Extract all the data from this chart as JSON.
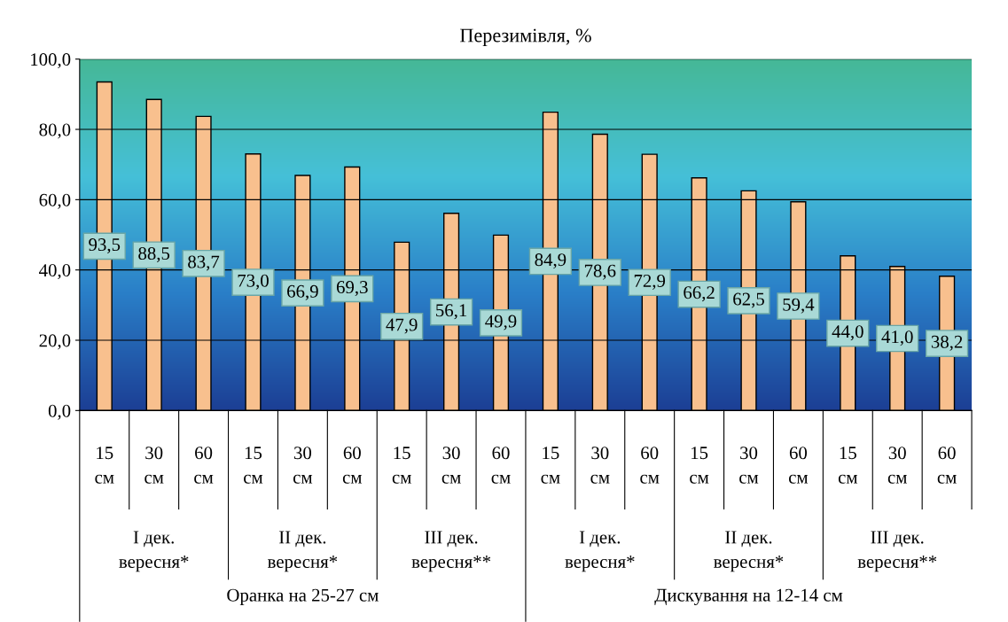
{
  "chart_data": {
    "type": "bar",
    "title": "Перезимівля, %",
    "categories": [
      "15\nсм",
      "30\nсм",
      "60\nсм",
      "15\nсм",
      "30\nсм",
      "60\nсм",
      "15\nсм",
      "30\nсм",
      "60\nсм",
      "15\nсм",
      "30\nсм",
      "60\nсм",
      "15\nсм",
      "30\nсм",
      "60\nсм",
      "15\nсм",
      "30\nсм",
      "60\nсм"
    ],
    "values": [
      93.5,
      88.5,
      83.7,
      73.0,
      66.9,
      69.3,
      47.9,
      56.1,
      49.9,
      84.9,
      78.6,
      72.9,
      66.2,
      62.5,
      59.4,
      44.0,
      41.0,
      38.2
    ],
    "value_labels": [
      "93,5",
      "88,5",
      "83,7",
      "73,0",
      "66,9",
      "69,3",
      "47,9",
      "56,1",
      "49,9",
      "84,9",
      "78,6",
      "72,9",
      "66,2",
      "62,5",
      "59,4",
      "44,0",
      "41,0",
      "38,2"
    ],
    "color": "#f8c08e",
    "ylim": [
      0,
      100
    ],
    "yticks": [
      {
        "value": 0,
        "label": "0,0"
      },
      {
        "value": 20,
        "label": "20,0"
      },
      {
        "value": 40,
        "label": "40,0"
      },
      {
        "value": 60,
        "label": "60,0"
      },
      {
        "value": 80,
        "label": "80,0"
      },
      {
        "value": 100,
        "label": "100,0"
      }
    ],
    "grid": "y",
    "annotations": [
      "I дек.\nвересня*",
      "II дек.\nвересня*",
      "III дек.\nвересня**",
      "I дек.\nвересня*",
      "II дек.\nвересня*",
      "III дек.\nвересня**",
      "Оранка на 25-27 см",
      "Дискування на 12-14 см"
    ]
  }
}
